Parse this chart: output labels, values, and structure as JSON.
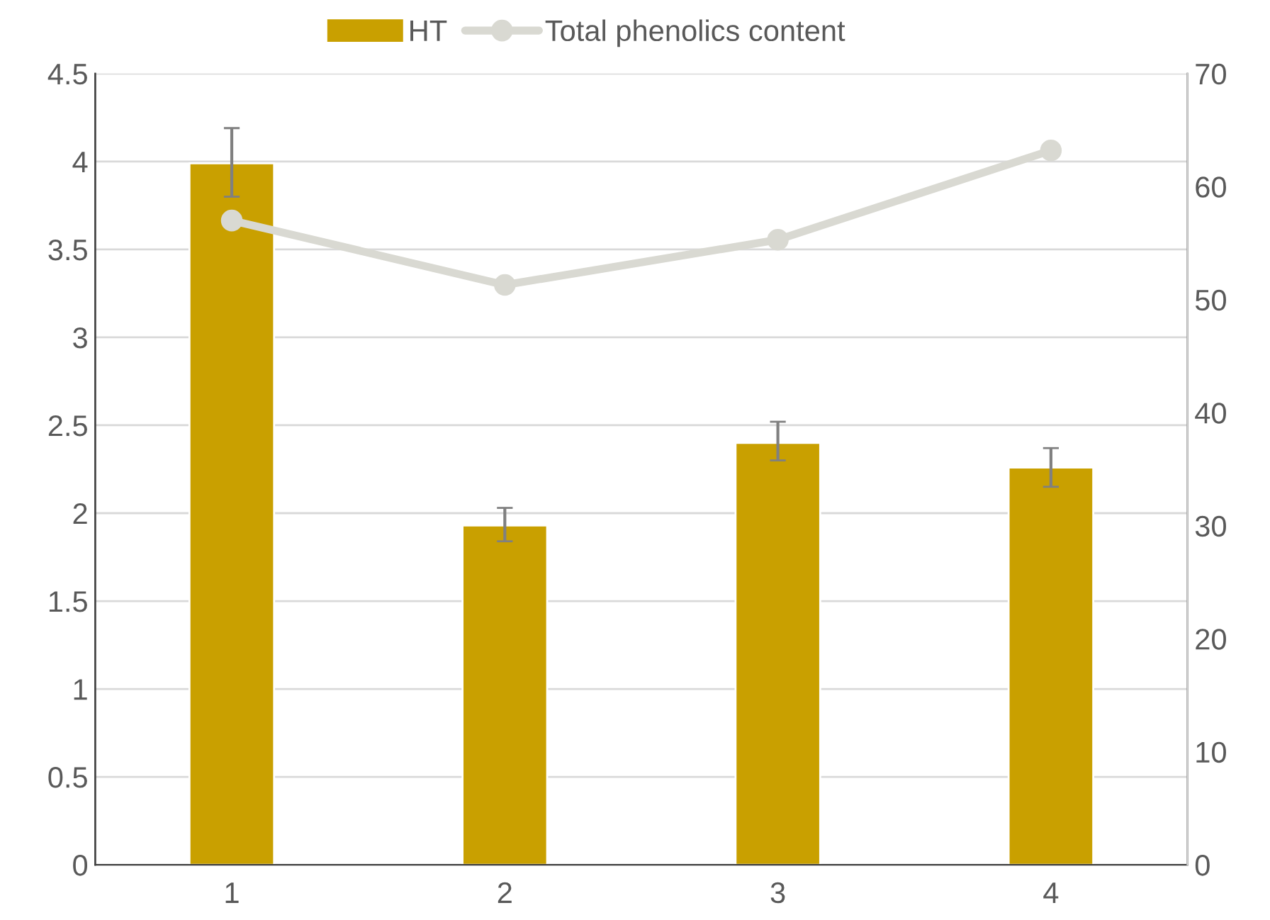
{
  "chart_data": {
    "type": "bar",
    "categories": [
      "1",
      "2",
      "3",
      "4"
    ],
    "series": [
      {
        "name": "HT",
        "color": "#c9a000",
        "values": [
          3.99,
          1.93,
          2.4,
          2.26
        ],
        "errors": [
          [
            3.8,
            4.19
          ],
          [
            1.84,
            2.03
          ],
          [
            2.3,
            2.52
          ],
          [
            2.15,
            2.37
          ]
        ]
      },
      {
        "name": "Total phenolics content",
        "type": "line",
        "axis": "y2",
        "color": "#d9d9d2",
        "values": [
          57,
          51.3,
          55.3,
          63.2
        ],
        "marker": "circle",
        "line_style": "solid"
      }
    ],
    "ylim": [
      0,
      4.5
    ],
    "yticks": [
      0,
      0.5,
      1,
      1.5,
      2,
      2.5,
      3,
      3.5,
      4,
      4.5
    ],
    "y2lim": [
      0,
      70
    ],
    "y2ticks": [
      0,
      10,
      20,
      30,
      40,
      50,
      60,
      70
    ],
    "grid": "y",
    "legend": "top"
  }
}
